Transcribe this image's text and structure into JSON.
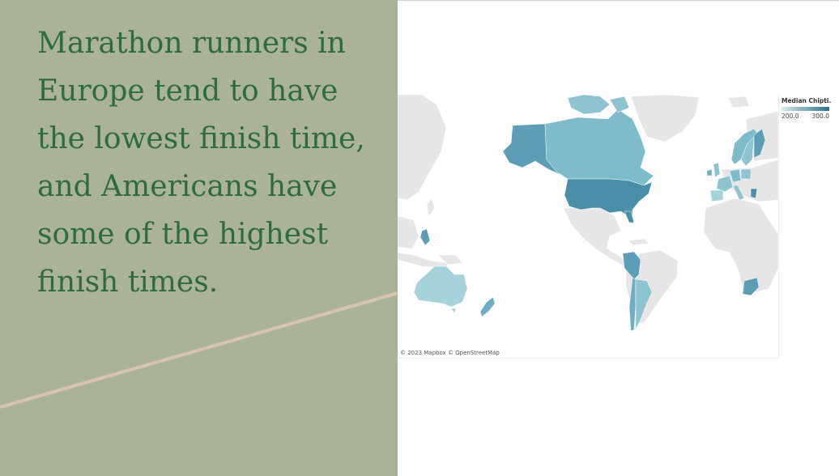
{
  "headline": "Marathon runners in Europe tend to have the lowest finish time, and Americans have some of the highest finish times.",
  "map": {
    "attribution": "© 2023 Mapbox © OpenStreetMap",
    "legend": {
      "title": "Median Chipti..",
      "min_label": "200.0",
      "max_label": "300.0",
      "color_low": "#d6ecee",
      "color_high": "#2f6f89"
    },
    "base_land_color": "#e6e6e6",
    "highlighted_countries": [
      {
        "name": "United States",
        "level": 0.85
      },
      {
        "name": "Alaska (United States)",
        "level": 0.8
      },
      {
        "name": "Canada",
        "level": 0.45
      },
      {
        "name": "Greenland",
        "level": 0.0
      },
      {
        "name": "Australia",
        "level": 0.3
      },
      {
        "name": "New Zealand",
        "level": 0.5
      },
      {
        "name": "Philippines",
        "level": 0.7
      },
      {
        "name": "Peru",
        "level": 0.6
      },
      {
        "name": "Chile",
        "level": 0.5
      },
      {
        "name": "Argentina",
        "level": 0.45
      },
      {
        "name": "South Africa",
        "level": 0.6
      },
      {
        "name": "Norway",
        "level": 0.5
      },
      {
        "name": "Sweden",
        "level": 0.45
      },
      {
        "name": "Finland",
        "level": 0.5
      },
      {
        "name": "Ireland",
        "level": 0.55
      },
      {
        "name": "United Kingdom",
        "level": 0.4
      },
      {
        "name": "Spain",
        "level": 0.35
      },
      {
        "name": "France",
        "level": 0.4
      },
      {
        "name": "Germany",
        "level": 0.4
      },
      {
        "name": "Italy",
        "level": 0.4
      },
      {
        "name": "Greece",
        "level": 0.7
      },
      {
        "name": "Poland",
        "level": 0.4
      }
    ],
    "colors": {
      "mid": "#7fbccb",
      "light": "#a6d2dc",
      "dark": "#4f93ad"
    }
  },
  "colors": {
    "panel_bg": "#aab39a",
    "headline_text": "#2e6b3e",
    "accent_line": "#d9c3b0"
  }
}
